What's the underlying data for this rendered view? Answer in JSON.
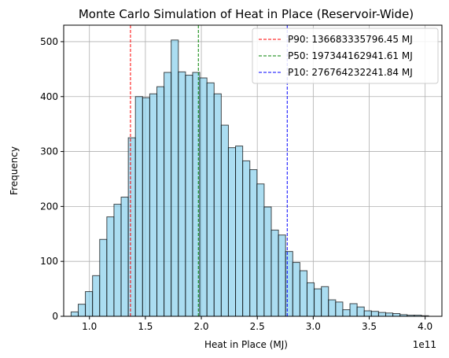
{
  "chart_data": {
    "type": "bar",
    "title": "Monte Carlo Simulation of Heat in Place (Reservoir-Wide)",
    "xlabel": "Heat in Place (MJ)",
    "ylabel": "Frequency",
    "x_offset_label": "1e11",
    "xlim": [
      0.77,
      4.15
    ],
    "ylim": [
      0,
      530
    ],
    "x_ticks": [
      1.0,
      1.5,
      2.0,
      2.5,
      3.0,
      3.5,
      4.0
    ],
    "x_tick_labels": [
      "1.0",
      "1.5",
      "2.0",
      "2.5",
      "3.0",
      "3.5",
      "4.0"
    ],
    "y_ticks": [
      0,
      100,
      200,
      300,
      400,
      500
    ],
    "y_tick_labels": [
      "0",
      "100",
      "200",
      "300",
      "400",
      "500"
    ],
    "grid": true,
    "bar_color": "#87CEEB",
    "bar_edge_color": "#000000",
    "bins": {
      "start": 0.836,
      "width": 0.0639,
      "unit_scale": "1e11",
      "counts": [
        8,
        22,
        45,
        74,
        140,
        181,
        204,
        217,
        325,
        400,
        398,
        405,
        418,
        444,
        503,
        445,
        439,
        444,
        434,
        425,
        405,
        348,
        307,
        310,
        283,
        267,
        241,
        199,
        157,
        148,
        118,
        98,
        83,
        61,
        50,
        54,
        30,
        26,
        12,
        23,
        17,
        10,
        9,
        7,
        6,
        5,
        3,
        2,
        2,
        1
      ]
    },
    "percentile_lines": [
      {
        "name": "P90",
        "x": 1.3668,
        "label": "P90: 136683335796.45 MJ",
        "color": "#FF0000"
      },
      {
        "name": "P50",
        "x": 1.9734,
        "label": "P50: 197344162941.61 MJ",
        "color": "#008000"
      },
      {
        "name": "P10",
        "x": 2.7676,
        "label": "P10: 276764232241.84 MJ",
        "color": "#0000FF"
      }
    ],
    "legend_position": "top-right"
  }
}
